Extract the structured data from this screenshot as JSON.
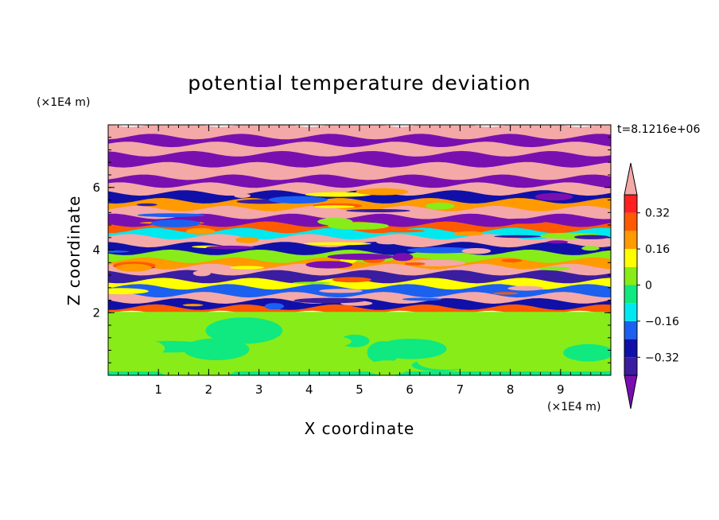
{
  "chart_data": {
    "type": "heatmap",
    "title": "potential temperature deviation",
    "xlabel": "X coordinate",
    "ylabel": "Z coordinate",
    "x_unit": "(×1E4 m)",
    "y_unit": "(×1E4 m)",
    "time_label": "t=8.1216e+06",
    "xlim": [
      0,
      10
    ],
    "ylim": [
      0,
      8
    ],
    "x_ticks": [
      1,
      2,
      3,
      4,
      5,
      6,
      7,
      8,
      9
    ],
    "y_ticks": [
      2,
      4,
      6
    ],
    "colorbar": {
      "levels": [
        -0.4,
        -0.32,
        -0.24,
        -0.16,
        -0.08,
        0,
        0.08,
        0.16,
        0.24,
        0.32,
        0.4
      ],
      "labels": [
        "0.32",
        "0.16",
        "0",
        "−0.16",
        "−0.32"
      ],
      "label_values": [
        0.32,
        0.16,
        0,
        -0.16,
        -0.32
      ],
      "colors": [
        "#7a0fb0",
        "#3a1da0",
        "#1010a8",
        "#1c60f0",
        "#00e8f0",
        "#10e880",
        "#88ec18",
        "#ffff00",
        "#ff9a00",
        "#ff5a00",
        "#ff2020",
        "#f4a8a8"
      ],
      "extend": "both"
    },
    "bands": [
      {
        "z": [
          7.6,
          8.0
        ],
        "value": 0.45
      },
      {
        "z": [
          7.35,
          7.6
        ],
        "value": -0.45
      },
      {
        "z": [
          7.05,
          7.35
        ],
        "value": 0.45
      },
      {
        "z": [
          6.7,
          7.05
        ],
        "value": -0.45
      },
      {
        "z": [
          6.3,
          6.7
        ],
        "value": 0.45
      },
      {
        "z": [
          6.05,
          6.3
        ],
        "value": -0.45
      },
      {
        "z": [
          5.8,
          6.05
        ],
        "value": 0.45
      },
      {
        "z": [
          5.55,
          5.8
        ],
        "value": -0.3
      },
      {
        "z": [
          5.3,
          5.55
        ],
        "value": 0.2
      },
      {
        "z": [
          5.05,
          5.3
        ],
        "value": 0.45
      },
      {
        "z": [
          4.8,
          5.05
        ],
        "value": -0.45
      },
      {
        "z": [
          4.6,
          4.8
        ],
        "value": 0.3
      },
      {
        "z": [
          4.4,
          4.6
        ],
        "value": -0.1
      },
      {
        "z": [
          4.15,
          4.4
        ],
        "value": 0.45
      },
      {
        "z": [
          3.9,
          4.15
        ],
        "value": -0.3
      },
      {
        "z": [
          3.65,
          3.9
        ],
        "value": 0.0
      },
      {
        "z": [
          3.45,
          3.65
        ],
        "value": 0.2
      },
      {
        "z": [
          3.25,
          3.45
        ],
        "value": 0.45
      },
      {
        "z": [
          3.0,
          3.25
        ],
        "value": -0.35
      },
      {
        "z": [
          2.8,
          3.0
        ],
        "value": 0.1
      },
      {
        "z": [
          2.55,
          2.8
        ],
        "value": -0.2
      },
      {
        "z": [
          2.35,
          2.55
        ],
        "value": 0.45
      },
      {
        "z": [
          2.15,
          2.35
        ],
        "value": -0.3
      },
      {
        "z": [
          2.0,
          2.15
        ],
        "value": 0.3
      },
      {
        "z": [
          0.1,
          2.0
        ],
        "value": 0.04
      },
      {
        "z": [
          0.0,
          0.1
        ],
        "value": -0.02
      }
    ]
  }
}
